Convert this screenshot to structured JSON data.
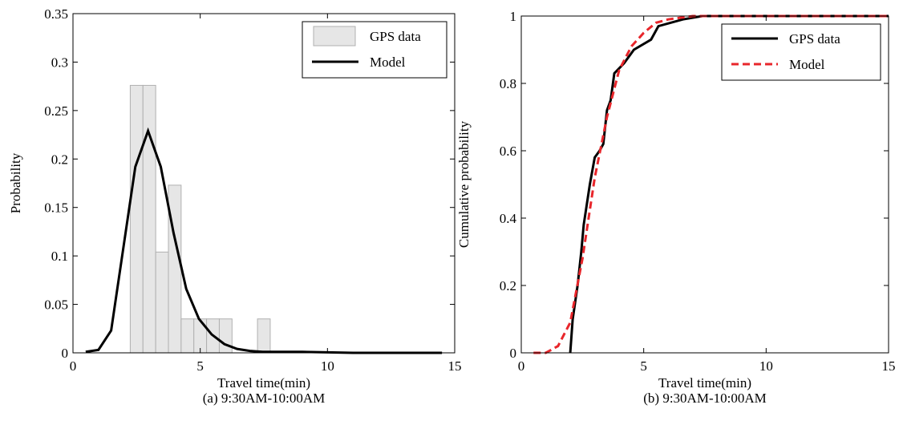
{
  "chart_data": [
    {
      "type": "histogram",
      "xlabel": "Travel time(min)",
      "ylabel": "Probability",
      "caption": "(a) 9:30AM-10:00AM",
      "xlim": [
        0,
        15
      ],
      "ylim": [
        0,
        0.35
      ],
      "xticks": [
        0,
        5,
        10,
        15
      ],
      "yticks": [
        0,
        0.05,
        0.1,
        0.15,
        0.2,
        0.25,
        0.3,
        0.35
      ],
      "legend": "upper right",
      "series": [
        {
          "name": "GPS data",
          "type": "histogram",
          "color": "#e6e6e6",
          "bins": [
            2.25,
            2.75,
            3.25,
            3.75,
            4.25,
            4.75,
            5.25,
            5.75,
            6.25,
            6.75,
            7.25,
            7.75
          ],
          "values": [
            0.276,
            0.276,
            0.104,
            0.173,
            0.035,
            0.035,
            0.035,
            0.035,
            0,
            0,
            0.035
          ]
        },
        {
          "name": "Model",
          "type": "line",
          "color": "#000000",
          "linestyle": "solid",
          "x": [
            0.5,
            1,
            1.5,
            2.45,
            2.95,
            3.45,
            3.95,
            4.45,
            4.95,
            5.45,
            5.95,
            6.45,
            6.95,
            7.45,
            8,
            9,
            10,
            11,
            12,
            13,
            14.5
          ],
          "values": [
            0.001,
            0.003,
            0.023,
            0.192,
            0.229,
            0.192,
            0.124,
            0.066,
            0.035,
            0.019,
            0.009,
            0.004,
            0.002,
            0.001,
            0.001,
            0.001,
            0.0005,
            0,
            0,
            0,
            0
          ]
        }
      ]
    },
    {
      "type": "line",
      "xlabel": "Travel time(min)",
      "ylabel": "Cumulative probability",
      "caption": "(b) 9:30AM-10:00AM",
      "xlim": [
        0,
        15
      ],
      "ylim": [
        0,
        1
      ],
      "xticks": [
        0,
        5,
        10,
        15
      ],
      "yticks": [
        0,
        0.2,
        0.4,
        0.6,
        0.8,
        1
      ],
      "legend": "upper right",
      "series": [
        {
          "name": "GPS data",
          "type": "line",
          "color": "#000000",
          "linestyle": "solid",
          "x": [
            2,
            2.1,
            2.3,
            2.45,
            2.55,
            2.8,
            3,
            3.2,
            3.35,
            3.5,
            3.65,
            3.8,
            4.2,
            4.6,
            5.3,
            5.6,
            6.6,
            7.4,
            15
          ],
          "values": [
            0,
            0.1,
            0.2,
            0.3,
            0.38,
            0.5,
            0.58,
            0.6,
            0.62,
            0.72,
            0.75,
            0.83,
            0.86,
            0.9,
            0.93,
            0.97,
            0.99,
            1,
            1
          ]
        },
        {
          "name": "Model",
          "type": "line",
          "color": "#e8262b",
          "linestyle": "dashed",
          "x": [
            0.5,
            1,
            1.5,
            2,
            2.5,
            3,
            3.5,
            4,
            4.5,
            5,
            5.5,
            6,
            7,
            15
          ],
          "values": [
            0,
            0,
            0.02,
            0.09,
            0.28,
            0.52,
            0.7,
            0.84,
            0.91,
            0.95,
            0.98,
            0.99,
            1,
            1
          ]
        }
      ]
    }
  ]
}
